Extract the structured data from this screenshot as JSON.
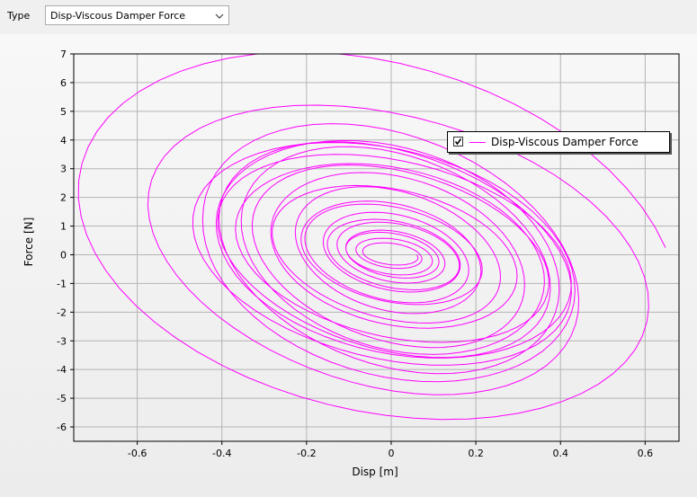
{
  "toolbar": {
    "type_label": "Type",
    "type_value": "Disp-Viscous Damper Force",
    "dropdown_icon": "chevron-down-icon"
  },
  "colors": {
    "series": "#ff00ff",
    "grid": "#b4b4b4",
    "axis": "#000000"
  },
  "chart_data": {
    "type": "line",
    "title": "",
    "xlabel": "Disp [m]",
    "ylabel": "Force [N]",
    "xlim": [
      -0.75,
      0.68
    ],
    "ylim": [
      -6.5,
      7.0
    ],
    "xticks": [
      -0.6,
      -0.4,
      -0.2,
      0,
      0.2,
      0.4,
      0.6
    ],
    "yticks": [
      -6,
      -5,
      -4,
      -3,
      -2,
      -1,
      0,
      1,
      2,
      3,
      4,
      5,
      6,
      7
    ],
    "grid": true,
    "legend": {
      "placement": "top-right",
      "checked": true,
      "entries": [
        "Disp-Viscous Damper Force"
      ]
    },
    "series": [
      {
        "name": "Disp-Viscous Damper Force",
        "description_points": [],
        "decay": {
          "amplitude_x": [
            0.72,
            0.44,
            0.42,
            0.38,
            0.33,
            0.24,
            0.19,
            0.14,
            0.1,
            0.06
          ],
          "amplitude_y": [
            6.8,
            4.2,
            3.9,
            3.5,
            3.0,
            2.2,
            1.6,
            1.1,
            0.7,
            0.3
          ],
          "center_x": [
            -0.04,
            -0.02,
            0.0,
            0.0,
            0.01,
            0.0,
            0.0,
            0.01,
            0.0,
            0.0
          ],
          "center_y": [
            0.25,
            -0.1,
            0.0,
            0.05,
            -0.05,
            0.05,
            0.0,
            0.0,
            0.0,
            0.0
          ]
        }
      }
    ]
  }
}
